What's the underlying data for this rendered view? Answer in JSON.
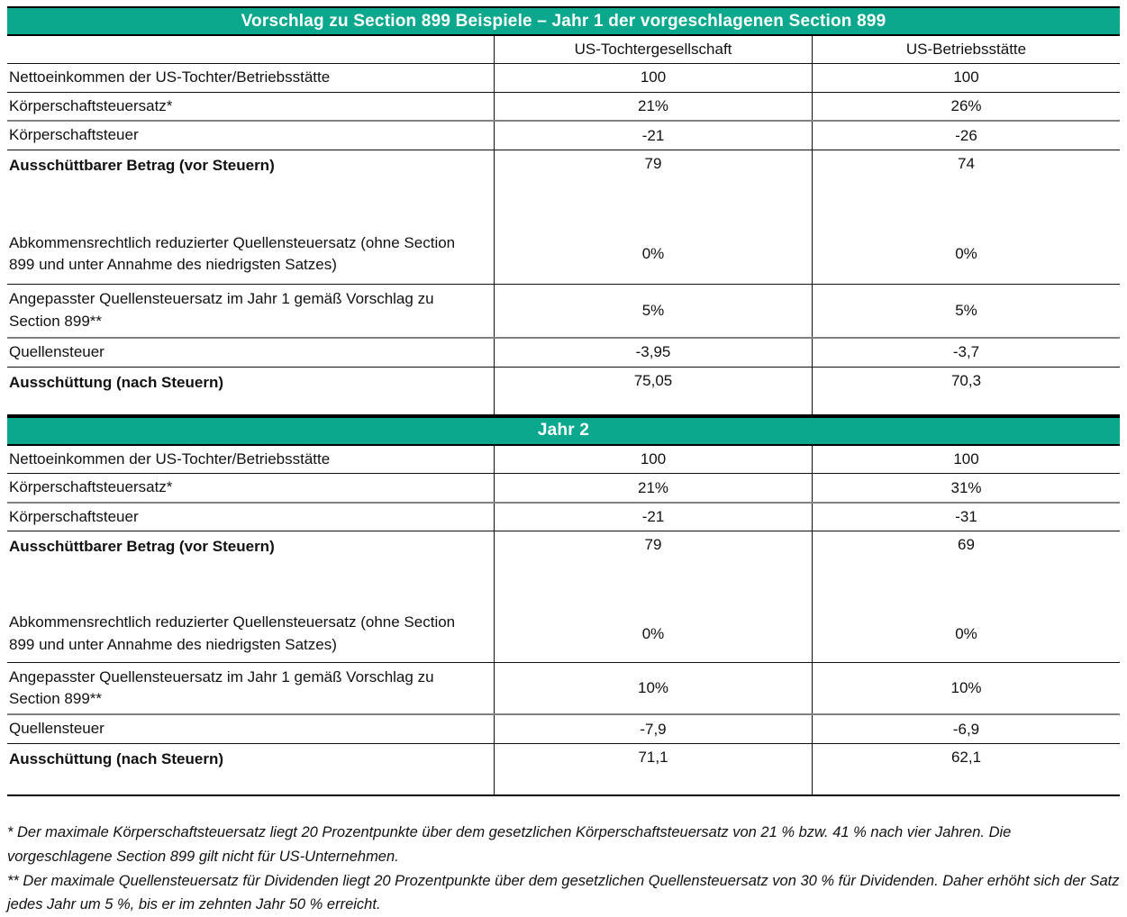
{
  "accent_color": "#0BA88E",
  "table1": {
    "title": "Vorschlag zu Section 899 Beispiele – Jahr 1 der vorgeschlagenen Section 899",
    "columns": [
      "US-Tochtergesellschaft",
      "US-Betriebsstätte"
    ],
    "rows": [
      {
        "label": "Nettoeinkommen der US-Tochter/Betriebsstätte",
        "v1": "100",
        "v2": "100",
        "bold": false
      },
      {
        "label": "Körperschaftsteuersatz*",
        "v1": "21%",
        "v2": "26%",
        "bold": false
      },
      {
        "label": "Körperschaftsteuer",
        "v1": "-21",
        "v2": "-26",
        "bold": false
      },
      {
        "label": "Ausschüttbarer Betrag (vor Steuern)",
        "v1": "79",
        "v2": "74",
        "bold": true
      },
      {
        "label": "Abkommensrechtlich reduzierter Quellensteuersatz (ohne Section 899 und unter Annahme des niedrigsten Satzes)",
        "v1": "0%",
        "v2": "0%",
        "bold": false
      },
      {
        "label": "Angepasster Quellensteuersatz im Jahr 1 gemäß Vorschlag zu Section 899**",
        "v1": "5%",
        "v2": "5%",
        "bold": false
      },
      {
        "label": "Quellensteuer",
        "v1": "-3,95",
        "v2": "-3,7",
        "bold": false
      },
      {
        "label": "Ausschüttung (nach Steuern)",
        "v1": "75,05",
        "v2": "70,3",
        "bold": true
      }
    ]
  },
  "table2": {
    "title": "Jahr 2",
    "rows": [
      {
        "label": "Nettoeinkommen der US-Tochter/Betriebsstätte",
        "v1": "100",
        "v2": "100",
        "bold": false
      },
      {
        "label": "Körperschaftsteuersatz*",
        "v1": "21%",
        "v2": "31%",
        "bold": false
      },
      {
        "label": "Körperschaftsteuer",
        "v1": "-21",
        "v2": "-31",
        "bold": false
      },
      {
        "label": "Ausschüttbarer Betrag (vor Steuern)",
        "v1": "79",
        "v2": "69",
        "bold": true
      },
      {
        "label": "Abkommensrechtlich reduzierter Quellensteuersatz (ohne Section 899 und unter Annahme des niedrigsten Satzes)",
        "v1": "0%",
        "v2": "0%",
        "bold": false
      },
      {
        "label": "Angepasster Quellensteuersatz im Jahr 1 gemäß Vorschlag zu Section 899**",
        "v1": "10%",
        "v2": "10%",
        "bold": false
      },
      {
        "label": "Quellensteuer",
        "v1": "-7,9",
        "v2": "-6,9",
        "bold": false
      },
      {
        "label": "Ausschüttung (nach Steuern)",
        "v1": "71,1",
        "v2": "62,1",
        "bold": true
      }
    ]
  },
  "footnotes": [
    "* Der maximale Körperschaftsteuersatz liegt 20 Prozentpunkte über dem gesetzlichen Körperschaftsteuersatz von 21 % bzw. 41 % nach vier Jahren. Die vorgeschlagene Section 899 gilt nicht für US-Unternehmen.",
    "** Der maximale Quellensteuersatz für Dividenden liegt 20 Prozentpunkte über dem gesetzlichen Quellensteuersatz von 30 % für Dividenden. Daher erhöht sich der Satz jedes Jahr um 5 %, bis er im zehnten Jahr 50 % erreicht."
  ]
}
